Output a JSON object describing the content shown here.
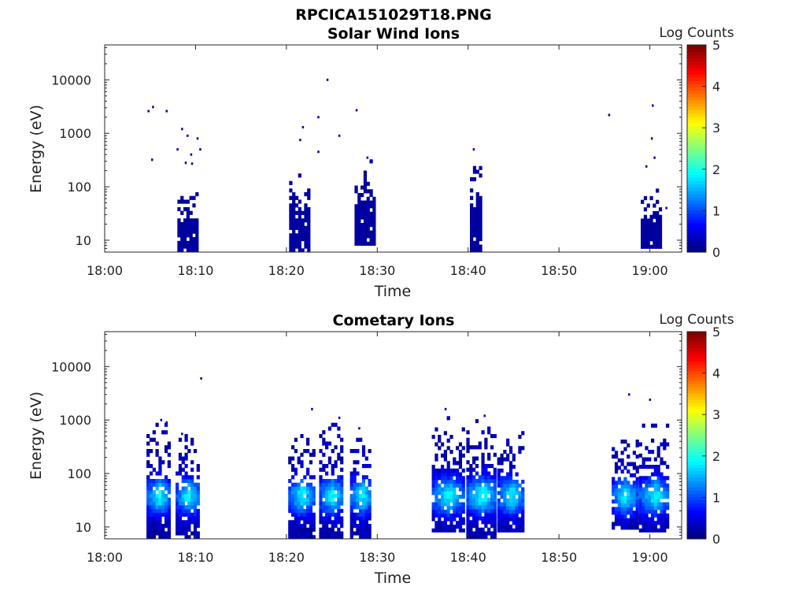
{
  "figure_title": "RPCICA151029T18.PNG",
  "chart_data": [
    {
      "type": "heatmap",
      "title": "Solar Wind Ions",
      "xlabel": "Time",
      "ylabel": "Energy (eV)",
      "colorbar_label": "Log Counts",
      "x_ticks": [
        "18:00",
        "18:10",
        "18:20",
        "18:30",
        "18:40",
        "18:50",
        "19:00"
      ],
      "x_range_minutes": [
        0,
        63.5
      ],
      "y_scale": "log",
      "y_ticks": [
        10,
        100,
        1000,
        10000
      ],
      "y_tick_labels": [
        "10",
        "100",
        "1000",
        "10000"
      ],
      "y_range": [
        6,
        45000
      ],
      "color_range": [
        0,
        5
      ],
      "colorbar_ticks": [
        "0",
        "1",
        "2",
        "3",
        "4",
        "5"
      ],
      "colormap": "jet",
      "bursts": [
        {
          "t_start": 8.0,
          "t_end": 10.2,
          "e_min": 6,
          "e_max": 100,
          "log_counts": 0.15
        },
        {
          "t_start": 20.3,
          "t_end": 22.4,
          "e_min": 6,
          "e_max": 200,
          "log_counts": 0.15
        },
        {
          "t_start": 27.5,
          "t_end": 29.5,
          "e_min": 8,
          "e_max": 300,
          "log_counts": 0.15
        },
        {
          "t_start": 40.2,
          "t_end": 41.5,
          "e_min": 6,
          "e_max": 300,
          "log_counts": 0.15
        },
        {
          "t_start": 59.0,
          "t_end": 61.0,
          "e_min": 7,
          "e_max": 120,
          "log_counts": 0.15
        }
      ],
      "scattered_points": [
        {
          "t": 4.8,
          "e": 2600
        },
        {
          "t": 5.3,
          "e": 3100
        },
        {
          "t": 6.8,
          "e": 2600
        },
        {
          "t": 5.2,
          "e": 320
        },
        {
          "t": 8.5,
          "e": 1200
        },
        {
          "t": 9.1,
          "e": 900
        },
        {
          "t": 10.2,
          "e": 800
        },
        {
          "t": 8.0,
          "e": 500
        },
        {
          "t": 10.5,
          "e": 500
        },
        {
          "t": 9.5,
          "e": 400
        },
        {
          "t": 8.9,
          "e": 280
        },
        {
          "t": 9.6,
          "e": 270
        },
        {
          "t": 24.5,
          "e": 10000
        },
        {
          "t": 23.5,
          "e": 2000
        },
        {
          "t": 21.8,
          "e": 1300
        },
        {
          "t": 21.5,
          "e": 750
        },
        {
          "t": 25.8,
          "e": 900
        },
        {
          "t": 23.5,
          "e": 450
        },
        {
          "t": 27.7,
          "e": 2700
        },
        {
          "t": 28.9,
          "e": 350
        },
        {
          "t": 40.6,
          "e": 500
        },
        {
          "t": 55.5,
          "e": 2200
        },
        {
          "t": 60.3,
          "e": 3300
        },
        {
          "t": 60.2,
          "e": 800
        },
        {
          "t": 60.5,
          "e": 350
        },
        {
          "t": 59.6,
          "e": 240
        },
        {
          "t": 61.8,
          "e": 40
        }
      ]
    },
    {
      "type": "heatmap",
      "title": "Cometary Ions",
      "xlabel": "Time",
      "ylabel": "Energy (eV)",
      "colorbar_label": "Log Counts",
      "x_ticks": [
        "18:00",
        "18:10",
        "18:20",
        "18:30",
        "18:40",
        "18:50",
        "19:00"
      ],
      "x_range_minutes": [
        0,
        63.5
      ],
      "y_scale": "log",
      "y_ticks": [
        10,
        100,
        1000,
        10000
      ],
      "y_tick_labels": [
        "10",
        "100",
        "1000",
        "10000"
      ],
      "y_range": [
        6,
        45000
      ],
      "color_range": [
        0,
        5
      ],
      "colorbar_ticks": [
        "0",
        "1",
        "2",
        "3",
        "4",
        "5"
      ],
      "colormap": "jet",
      "bursts": [
        {
          "t_start": 4.6,
          "t_end": 7.2,
          "e_min": 6,
          "e_max": 900,
          "peak_log_counts": 1.9
        },
        {
          "t_start": 7.8,
          "t_end": 10.3,
          "e_min": 6,
          "e_max": 500,
          "peak_log_counts": 1.9
        },
        {
          "t_start": 20.2,
          "t_end": 23.0,
          "e_min": 6,
          "e_max": 500,
          "peak_log_counts": 1.9
        },
        {
          "t_start": 23.6,
          "t_end": 26.2,
          "e_min": 6,
          "e_max": 1000,
          "peak_log_counts": 1.9
        },
        {
          "t_start": 27.0,
          "t_end": 29.3,
          "e_min": 6,
          "e_max": 600,
          "peak_log_counts": 1.9
        },
        {
          "t_start": 36.0,
          "t_end": 39.5,
          "e_min": 8,
          "e_max": 1400,
          "peak_log_counts": 1.9
        },
        {
          "t_start": 39.8,
          "t_end": 43.0,
          "e_min": 6,
          "e_max": 1100,
          "peak_log_counts": 2.0
        },
        {
          "t_start": 43.2,
          "t_end": 46.0,
          "e_min": 8,
          "e_max": 600,
          "peak_log_counts": 1.9
        },
        {
          "t_start": 55.8,
          "t_end": 58.5,
          "e_min": 9,
          "e_max": 500,
          "peak_log_counts": 1.9
        },
        {
          "t_start": 58.8,
          "t_end": 62.0,
          "e_min": 8,
          "e_max": 800,
          "peak_log_counts": 1.9
        }
      ],
      "scattered_points": [
        {
          "t": 10.6,
          "e": 6000
        },
        {
          "t": 22.8,
          "e": 1600
        },
        {
          "t": 57.7,
          "e": 3000
        },
        {
          "t": 60.0,
          "e": 2400
        },
        {
          "t": 6.8,
          "e": 900
        },
        {
          "t": 6.2,
          "e": 1000
        },
        {
          "t": 8.5,
          "e": 550
        },
        {
          "t": 25.8,
          "e": 1100
        },
        {
          "t": 37.5,
          "e": 1600
        },
        {
          "t": 41.8,
          "e": 1200
        },
        {
          "t": 28.0,
          "e": 700
        }
      ]
    }
  ]
}
